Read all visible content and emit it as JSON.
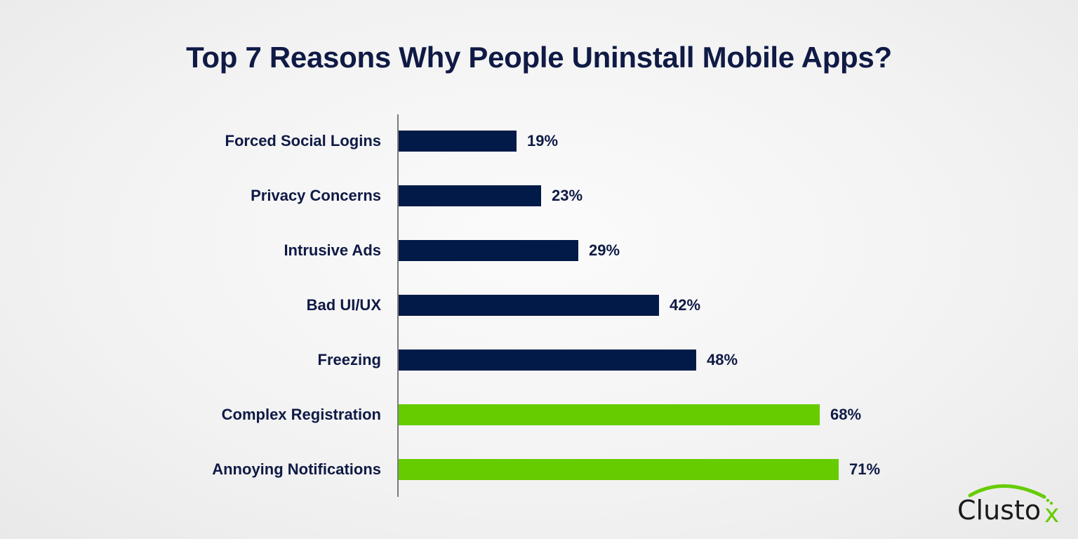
{
  "title": "Top 7 Reasons Why People Uninstall Mobile Apps?",
  "logo": {
    "text": "Clusto",
    "suffix": "x"
  },
  "colors": {
    "navy": "#021a47",
    "green": "#66cc00",
    "text": "#0f1a45",
    "axis": "#7a7a7a"
  },
  "rows": [
    {
      "label": "Forced Social Logins",
      "value": "19%"
    },
    {
      "label": "Privacy Concerns",
      "value": "23%"
    },
    {
      "label": "Intrusive Ads",
      "value": "29%"
    },
    {
      "label": "Bad UI/UX",
      "value": "42%"
    },
    {
      "label": "Freezing",
      "value": "48%"
    },
    {
      "label": "Complex Registration",
      "value": "68%"
    },
    {
      "label": "Annoying Notifications",
      "value": "71%"
    }
  ],
  "chart_data": {
    "type": "bar",
    "orientation": "horizontal",
    "title": "Top 7 Reasons Why People Uninstall Mobile Apps?",
    "categories": [
      "Forced Social Logins",
      "Privacy Concerns",
      "Intrusive Ads",
      "Bad UI/UX",
      "Freezing",
      "Complex Registration",
      "Annoying Notifications"
    ],
    "values": [
      19,
      23,
      29,
      42,
      48,
      68,
      71
    ],
    "unit": "%",
    "bar_colors": [
      "#021a47",
      "#021a47",
      "#021a47",
      "#021a47",
      "#021a47",
      "#66cc00",
      "#66cc00"
    ],
    "xlabel": "",
    "ylabel": "",
    "grid": false,
    "data_labels": true,
    "legend": null
  }
}
